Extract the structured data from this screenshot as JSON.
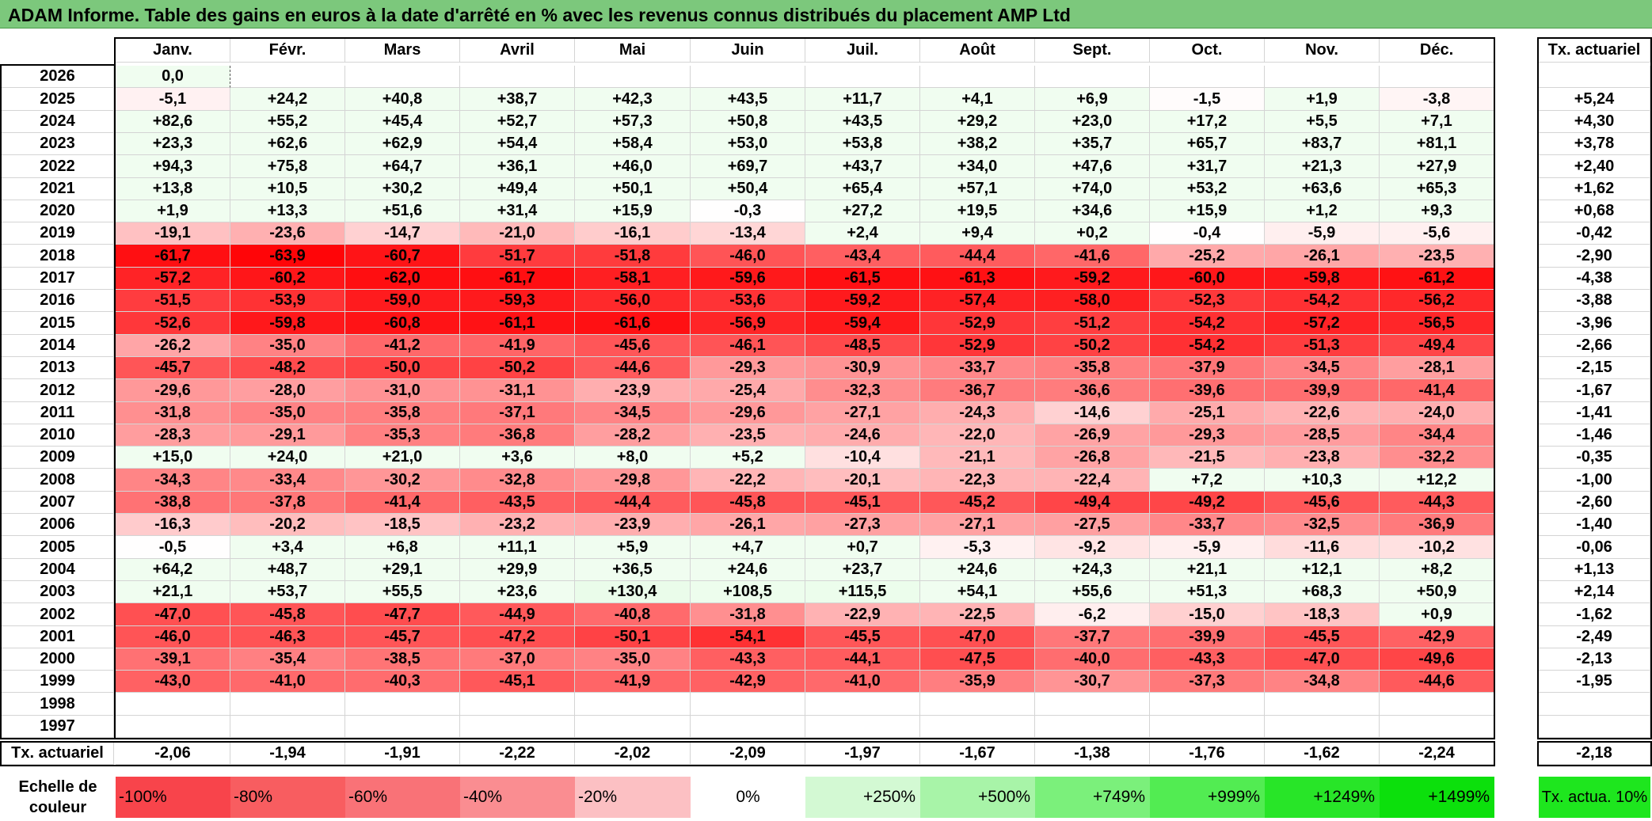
{
  "title": "ADAM Informe. Table des gains en euros à la date d'arrêté en % avec les revenus connus distribués du placement AMP Ltd",
  "chart_data": {
    "type": "heatmap",
    "title": "ADAM Informe. Table des gains en euros à la date d'arrêté en % avec les revenus connus distribués du placement AMP Ltd",
    "months": [
      "Janv.",
      "Févr.",
      "Mars",
      "Avril",
      "Mai",
      "Juin",
      "Juil.",
      "Août",
      "Sept.",
      "Oct.",
      "Nov.",
      "Déc."
    ],
    "rate_col_header": "Tx. actuariel",
    "rows": [
      {
        "year": "2026",
        "values": [
          "0,0",
          "",
          "",
          "",
          "",
          "",
          "",
          "",
          "",
          "",
          "",
          ""
        ],
        "rate": ""
      },
      {
        "year": "2025",
        "values": [
          "-5,1",
          "+24,2",
          "+40,8",
          "+38,7",
          "+42,3",
          "+43,5",
          "+11,7",
          "+4,1",
          "+6,9",
          "-1,5",
          "+1,9",
          "-3,8"
        ],
        "rate": "+5,24"
      },
      {
        "year": "2024",
        "values": [
          "+82,6",
          "+55,2",
          "+45,4",
          "+52,7",
          "+57,3",
          "+50,8",
          "+43,5",
          "+29,2",
          "+23,0",
          "+17,2",
          "+5,5",
          "+7,1"
        ],
        "rate": "+4,30"
      },
      {
        "year": "2023",
        "values": [
          "+23,3",
          "+62,6",
          "+62,9",
          "+54,4",
          "+58,4",
          "+53,0",
          "+53,8",
          "+38,2",
          "+35,7",
          "+65,7",
          "+83,7",
          "+81,1"
        ],
        "rate": "+3,78"
      },
      {
        "year": "2022",
        "values": [
          "+94,3",
          "+75,8",
          "+64,7",
          "+36,1",
          "+46,0",
          "+69,7",
          "+43,7",
          "+34,0",
          "+47,6",
          "+31,7",
          "+21,3",
          "+27,9"
        ],
        "rate": "+2,40"
      },
      {
        "year": "2021",
        "values": [
          "+13,8",
          "+10,5",
          "+30,2",
          "+49,4",
          "+50,1",
          "+50,4",
          "+65,4",
          "+57,1",
          "+74,0",
          "+53,2",
          "+63,6",
          "+65,3"
        ],
        "rate": "+1,62"
      },
      {
        "year": "2020",
        "values": [
          "+1,9",
          "+13,3",
          "+51,6",
          "+31,4",
          "+15,9",
          "-0,3",
          "+27,2",
          "+19,5",
          "+34,6",
          "+15,9",
          "+1,2",
          "+9,3"
        ],
        "rate": "+0,68"
      },
      {
        "year": "2019",
        "values": [
          "-19,1",
          "-23,6",
          "-14,7",
          "-21,0",
          "-16,1",
          "-13,4",
          "+2,4",
          "+9,4",
          "+0,2",
          "-0,4",
          "-5,9",
          "-5,6"
        ],
        "rate": "-0,42"
      },
      {
        "year": "2018",
        "values": [
          "-61,7",
          "-63,9",
          "-60,7",
          "-51,7",
          "-51,8",
          "-46,0",
          "-43,4",
          "-44,4",
          "-41,6",
          "-25,2",
          "-26,1",
          "-23,5"
        ],
        "rate": "-2,90"
      },
      {
        "year": "2017",
        "values": [
          "-57,2",
          "-60,2",
          "-62,0",
          "-61,7",
          "-58,1",
          "-59,6",
          "-61,5",
          "-61,3",
          "-59,2",
          "-60,0",
          "-59,8",
          "-61,2"
        ],
        "rate": "-4,38"
      },
      {
        "year": "2016",
        "values": [
          "-51,5",
          "-53,9",
          "-59,0",
          "-59,3",
          "-56,0",
          "-53,6",
          "-59,2",
          "-57,4",
          "-58,0",
          "-52,3",
          "-54,2",
          "-56,2"
        ],
        "rate": "-3,88"
      },
      {
        "year": "2015",
        "values": [
          "-52,6",
          "-59,8",
          "-60,8",
          "-61,1",
          "-61,6",
          "-56,9",
          "-59,4",
          "-52,9",
          "-51,2",
          "-54,2",
          "-57,2",
          "-56,5"
        ],
        "rate": "-3,96"
      },
      {
        "year": "2014",
        "values": [
          "-26,2",
          "-35,0",
          "-41,2",
          "-41,9",
          "-45,6",
          "-46,1",
          "-48,5",
          "-52,9",
          "-50,2",
          "-54,2",
          "-51,3",
          "-49,4"
        ],
        "rate": "-2,66"
      },
      {
        "year": "2013",
        "values": [
          "-45,7",
          "-48,2",
          "-50,0",
          "-50,2",
          "-44,6",
          "-29,3",
          "-30,9",
          "-33,7",
          "-35,8",
          "-37,9",
          "-34,5",
          "-28,1"
        ],
        "rate": "-2,15"
      },
      {
        "year": "2012",
        "values": [
          "-29,6",
          "-28,0",
          "-31,0",
          "-31,1",
          "-23,9",
          "-25,4",
          "-32,3",
          "-36,7",
          "-36,6",
          "-39,6",
          "-39,9",
          "-41,4"
        ],
        "rate": "-1,67"
      },
      {
        "year": "2011",
        "values": [
          "-31,8",
          "-35,0",
          "-35,8",
          "-37,1",
          "-34,5",
          "-29,6",
          "-27,1",
          "-24,3",
          "-14,6",
          "-25,1",
          "-22,6",
          "-24,0"
        ],
        "rate": "-1,41"
      },
      {
        "year": "2010",
        "values": [
          "-28,3",
          "-29,1",
          "-35,3",
          "-36,8",
          "-28,2",
          "-23,5",
          "-24,6",
          "-22,0",
          "-26,9",
          "-29,3",
          "-28,5",
          "-34,4"
        ],
        "rate": "-1,46"
      },
      {
        "year": "2009",
        "values": [
          "+15,0",
          "+24,0",
          "+21,0",
          "+3,6",
          "+8,0",
          "+5,2",
          "-10,4",
          "-21,1",
          "-26,8",
          "-21,5",
          "-23,8",
          "-32,2"
        ],
        "rate": "-0,35"
      },
      {
        "year": "2008",
        "values": [
          "-34,3",
          "-33,4",
          "-30,2",
          "-32,8",
          "-29,8",
          "-22,2",
          "-20,1",
          "-22,3",
          "-22,4",
          "+7,2",
          "+10,3",
          "+12,2"
        ],
        "rate": "-1,00"
      },
      {
        "year": "2007",
        "values": [
          "-38,8",
          "-37,8",
          "-41,4",
          "-43,5",
          "-44,4",
          "-45,8",
          "-45,1",
          "-45,2",
          "-49,4",
          "-49,2",
          "-45,6",
          "-44,3"
        ],
        "rate": "-2,60"
      },
      {
        "year": "2006",
        "values": [
          "-16,3",
          "-20,2",
          "-18,5",
          "-23,2",
          "-23,9",
          "-26,1",
          "-27,3",
          "-27,1",
          "-27,5",
          "-33,7",
          "-32,5",
          "-36,9"
        ],
        "rate": "-1,40"
      },
      {
        "year": "2005",
        "values": [
          "-0,5",
          "+3,4",
          "+6,8",
          "+11,1",
          "+5,9",
          "+4,7",
          "+0,7",
          "-5,3",
          "-9,2",
          "-5,9",
          "-11,6",
          "-10,2"
        ],
        "rate": "-0,06"
      },
      {
        "year": "2004",
        "values": [
          "+64,2",
          "+48,7",
          "+29,1",
          "+29,9",
          "+36,5",
          "+24,6",
          "+23,7",
          "+24,6",
          "+24,3",
          "+21,1",
          "+12,1",
          "+8,2"
        ],
        "rate": "+1,13"
      },
      {
        "year": "2003",
        "values": [
          "+21,1",
          "+53,7",
          "+55,5",
          "+23,6",
          "+130,4",
          "+108,5",
          "+115,5",
          "+54,1",
          "+55,6",
          "+51,3",
          "+68,3",
          "+50,9"
        ],
        "rate": "+2,14"
      },
      {
        "year": "2002",
        "values": [
          "-47,0",
          "-45,8",
          "-47,7",
          "-44,9",
          "-40,8",
          "-31,8",
          "-22,9",
          "-22,5",
          "-6,2",
          "-15,0",
          "-18,3",
          "+0,9"
        ],
        "rate": "-1,62"
      },
      {
        "year": "2001",
        "values": [
          "-46,0",
          "-46,3",
          "-45,7",
          "-47,2",
          "-50,1",
          "-54,1",
          "-45,5",
          "-47,0",
          "-37,7",
          "-39,9",
          "-45,5",
          "-42,9"
        ],
        "rate": "-2,49"
      },
      {
        "year": "2000",
        "values": [
          "-39,1",
          "-35,4",
          "-38,5",
          "-37,0",
          "-35,0",
          "-43,3",
          "-44,1",
          "-47,5",
          "-40,0",
          "-43,3",
          "-47,0",
          "-49,6"
        ],
        "rate": "-2,13"
      },
      {
        "year": "1999",
        "values": [
          "-43,0",
          "-41,0",
          "-40,3",
          "-45,1",
          "-41,9",
          "-42,9",
          "-41,0",
          "-35,9",
          "-30,7",
          "-37,3",
          "-34,8",
          "-44,6"
        ],
        "rate": "-1,95"
      },
      {
        "year": "1998",
        "values": [
          "",
          "",
          "",
          "",
          "",
          "",
          "",
          "",
          "",
          "",
          "",
          ""
        ],
        "rate": ""
      },
      {
        "year": "1997",
        "values": [
          "",
          "",
          "",
          "",
          "",
          "",
          "",
          "",
          "",
          "",
          "",
          ""
        ],
        "rate": ""
      }
    ],
    "footer": {
      "label": "Tx. actuariel",
      "values": [
        "-2,06",
        "-1,94",
        "-1,91",
        "-2,22",
        "-2,02",
        "-2,09",
        "-1,97",
        "-1,67",
        "-1,38",
        "-1,76",
        "-1,62",
        "-2,24"
      ],
      "rate": "-2,18"
    },
    "scale": {
      "label": "Echelle de couleur",
      "items": [
        {
          "label": "-100%",
          "color": "#f8444b"
        },
        {
          "label": "-80%",
          "color": "#f85d60"
        },
        {
          "label": "-60%",
          "color": "#f97277"
        },
        {
          "label": "-40%",
          "color": "#fa8d91"
        },
        {
          "label": "-20%",
          "color": "#fcc0c3"
        },
        {
          "label": "0%",
          "color": "#ffffff"
        },
        {
          "label": "+250%",
          "color": "#d3f9d3"
        },
        {
          "label": "+500%",
          "color": "#a8f4a8"
        },
        {
          "label": "+749%",
          "color": "#7bf07b"
        },
        {
          "label": "+999%",
          "color": "#52ec52"
        },
        {
          "label": "+1249%",
          "color": "#28e528"
        },
        {
          "label": "+1499%",
          "color": "#0ce00c"
        }
      ],
      "rate_label": "Tx. actua. 10%",
      "rate_color": "#1ee61e"
    }
  }
}
